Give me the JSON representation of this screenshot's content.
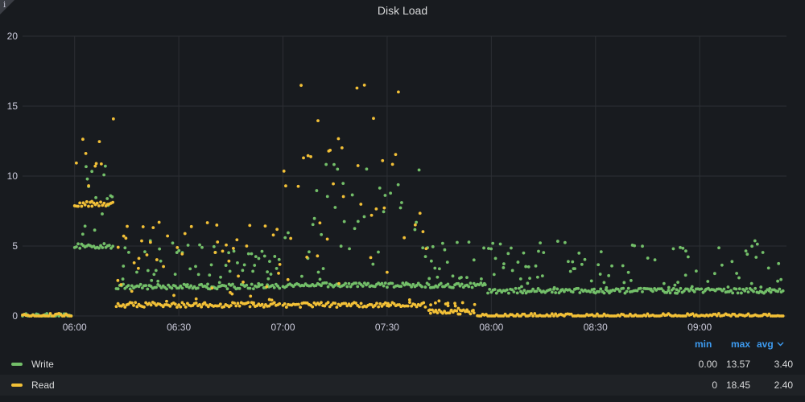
{
  "panel": {
    "title": "Disk Load",
    "info_icon": "info-icon"
  },
  "legend": {
    "headers": {
      "min": "min",
      "max": "max",
      "avg": "avg",
      "sort_icon": "chevron-down-icon"
    },
    "series": [
      {
        "name": "Write",
        "min": "0.00",
        "max": "13.57",
        "avg": "3.40",
        "color": "#73bf69"
      },
      {
        "name": "Read",
        "min": "0",
        "max": "18.45",
        "avg": "2.40",
        "color": "#f2c037"
      }
    ]
  },
  "colors": {
    "background": "#181b1f",
    "grid": "#2c2f34",
    "text": "#ccccdc",
    "accent": "#3d9bf0"
  },
  "chart_data": {
    "type": "scatter",
    "title": "Disk Load",
    "x_unit": "time of day (hours, HH:MM on axis)",
    "xlim": [
      "05:45",
      "09:25"
    ],
    "ylim": [
      0,
      20
    ],
    "x_ticks": [
      "06:00",
      "06:30",
      "07:00",
      "07:30",
      "08:00",
      "08:30",
      "09:00"
    ],
    "y_ticks": [
      0,
      5,
      10,
      15,
      20
    ],
    "grid": true,
    "legend_placement": "bottom",
    "series": [
      {
        "name": "Write",
        "color": "#73bf69",
        "description": "dense baseline band with scattered bursts",
        "segments": [
          {
            "x_from": "05:45",
            "x_to": "05:59",
            "baseline": 0,
            "spread": 0
          },
          {
            "x_from": "06:00",
            "x_to": "06:11",
            "baseline": 5,
            "spread": 8
          },
          {
            "x_from": "06:12",
            "x_to": "06:59",
            "baseline": 2.1,
            "spread": 3.5
          },
          {
            "x_from": "07:00",
            "x_to": "07:40",
            "baseline": 2.2,
            "spread": 9
          },
          {
            "x_from": "07:41",
            "x_to": "07:58",
            "baseline": 2.2,
            "spread": 3.5
          },
          {
            "x_from": "07:59",
            "x_to": "09:24",
            "baseline": 1.8,
            "spread": 3.6
          }
        ],
        "max": 13.57
      },
      {
        "name": "Read",
        "color": "#f2c037",
        "description": "zero until 06:00, bursts until ~07:45, then decays to zero",
        "segments": [
          {
            "x_from": "05:45",
            "x_to": "05:59",
            "baseline": 0,
            "spread": 0
          },
          {
            "x_from": "06:00",
            "x_to": "06:11",
            "baseline": 8,
            "spread": 8
          },
          {
            "x_from": "06:12",
            "x_to": "06:59",
            "baseline": 0.8,
            "spread": 6
          },
          {
            "x_from": "07:00",
            "x_to": "07:41",
            "baseline": 0.8,
            "spread": 16
          },
          {
            "x_from": "07:42",
            "x_to": "07:55",
            "baseline": 0.3,
            "spread": 0.8
          },
          {
            "x_from": "07:56",
            "x_to": "09:24",
            "baseline": 0,
            "spread": 0
          }
        ],
        "max": 18.45
      }
    ]
  }
}
